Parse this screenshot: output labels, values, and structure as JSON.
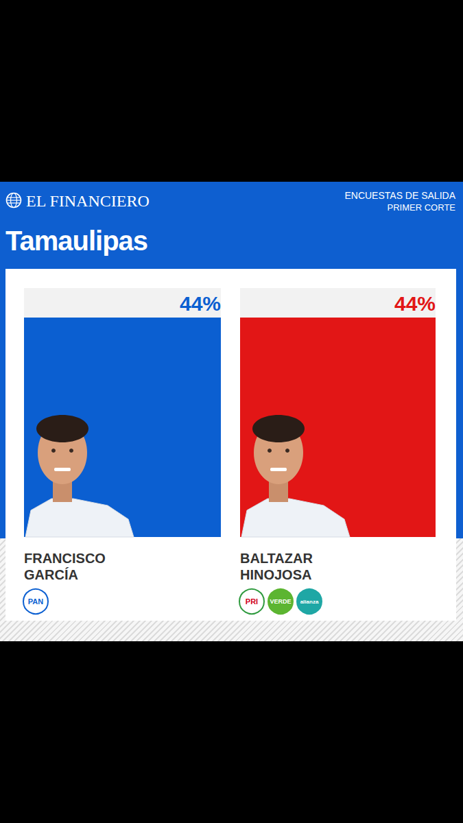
{
  "header": {
    "brand": "EL FINANCIERO",
    "kicker": "ENCUESTAS DE SALIDA",
    "subkicker": "PRIMER CORTE"
  },
  "chart_data": {
    "type": "bar",
    "title": "Tamaulipas",
    "categories": [
      "FRANCISCO GARCÍA",
      "BALTAZAR HINOJOSA"
    ],
    "values": [
      44,
      44
    ],
    "value_labels": [
      "44%",
      "44%"
    ],
    "colors": [
      "#0b5fd1",
      "#e21616"
    ],
    "parties": [
      [
        "PAN"
      ],
      [
        "PRI",
        "VERDE",
        "alianza"
      ]
    ],
    "ylim": [
      0,
      44
    ],
    "yticks": [],
    "data_labels": true,
    "tick_labels": false,
    "grid": false
  }
}
